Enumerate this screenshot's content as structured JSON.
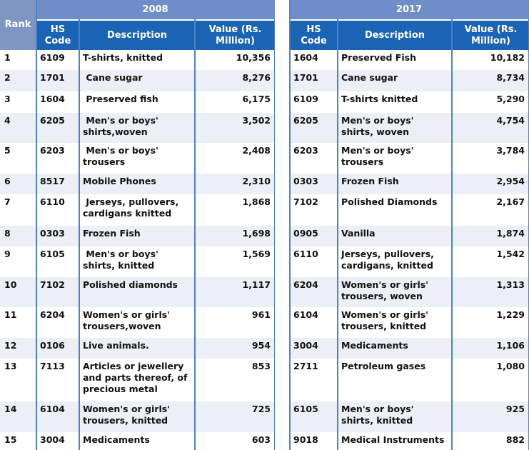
{
  "rank_header": "Rank",
  "column_headers": {
    "hs_code": "HS Code",
    "description": "Description",
    "value": "Value (Rs. Million)"
  },
  "colors": {
    "year_band": "#6f8dc8",
    "header": "#1b63b5",
    "rank_header": "#7f96c2",
    "alt_row": "#eceff5",
    "grid_line": "#4f82c2"
  },
  "ranks": [
    "1",
    "2",
    "3",
    "4",
    "5",
    "6",
    "7",
    "8",
    "9",
    "10",
    "11",
    "12",
    "13",
    "14",
    "15"
  ],
  "tables": [
    {
      "year": "2008",
      "rows": [
        {
          "code": "6109",
          "desc": "T-shirts, knitted",
          "value": "10,356"
        },
        {
          "code": "1701",
          "desc": " Cane sugar",
          "value": "8,276"
        },
        {
          "code": "1604",
          "desc": " Preserved fish",
          "value": "6,175"
        },
        {
          "code": "6205",
          "desc": " Men's or boys' shirts,woven",
          "value": "3,502"
        },
        {
          "code": "6203",
          "desc": " Men's or boys' trousers",
          "value": "2,408"
        },
        {
          "code": "8517",
          "desc": "Mobile Phones",
          "value": "2,310"
        },
        {
          "code": "6110",
          "desc": " Jerseys, pullovers, cardigans knitted",
          "value": "1,868"
        },
        {
          "code": "0303",
          "desc": "Frozen Fish",
          "value": "1,698"
        },
        {
          "code": "6105",
          "desc": " Men's or boys' shirts, knitted",
          "value": "1,569"
        },
        {
          "code": "7102",
          "desc": "Polished diamonds",
          "value": "1,117"
        },
        {
          "code": "6204",
          "desc": "Women's or girls' trousers,woven",
          "value": "961"
        },
        {
          "code": "0106",
          "desc": "Live animals.",
          "value": "954"
        },
        {
          "code": "7113",
          "desc": "Articles or jewellery and parts thereof, of precious metal",
          "value": "853"
        },
        {
          "code": "6104",
          "desc": "Women's or girls' trousers, knitted",
          "value": "725"
        },
        {
          "code": "3004",
          "desc": "Medicaments",
          "value": "603"
        }
      ]
    },
    {
      "year": "2017",
      "rows": [
        {
          "code": "1604",
          "desc": "Preserved Fish",
          "value": "10,182"
        },
        {
          "code": "1701",
          "desc": "Cane sugar",
          "value": "8,734"
        },
        {
          "code": "6109",
          "desc": "T-shirts knitted",
          "value": "5,290"
        },
        {
          "code": "6205",
          "desc": "Men's or boys' shirts, woven",
          "value": "4,754"
        },
        {
          "code": "6203",
          "desc": "Men's or boys' trousers",
          "value": "3,784"
        },
        {
          "code": "0303",
          "desc": "Frozen Fish",
          "value": "2,954"
        },
        {
          "code": "7102",
          "desc": "Polished Diamonds",
          "value": "2,167"
        },
        {
          "code": "0905",
          "desc": "Vanilla",
          "value": "1,874"
        },
        {
          "code": "6110",
          "desc": "Jerseys, pullovers, cardigans, knitted",
          "value": "1,542"
        },
        {
          "code": "6204",
          "desc": "Women's or girls' trousers, woven",
          "value": "1,313"
        },
        {
          "code": "6104",
          "desc": "Women's or girls' trousers, knitted",
          "value": "1,229"
        },
        {
          "code": "3004",
          "desc": "Medicaments",
          "value": "1,106"
        },
        {
          "code": "2711",
          "desc": "Petroleum gases",
          "value": "1,080"
        },
        {
          "code": "6105",
          "desc": "Men's or boys' shirts, knitted",
          "value": "925"
        },
        {
          "code": "9018",
          "desc": "Medical Instruments",
          "value": "882"
        }
      ]
    }
  ]
}
